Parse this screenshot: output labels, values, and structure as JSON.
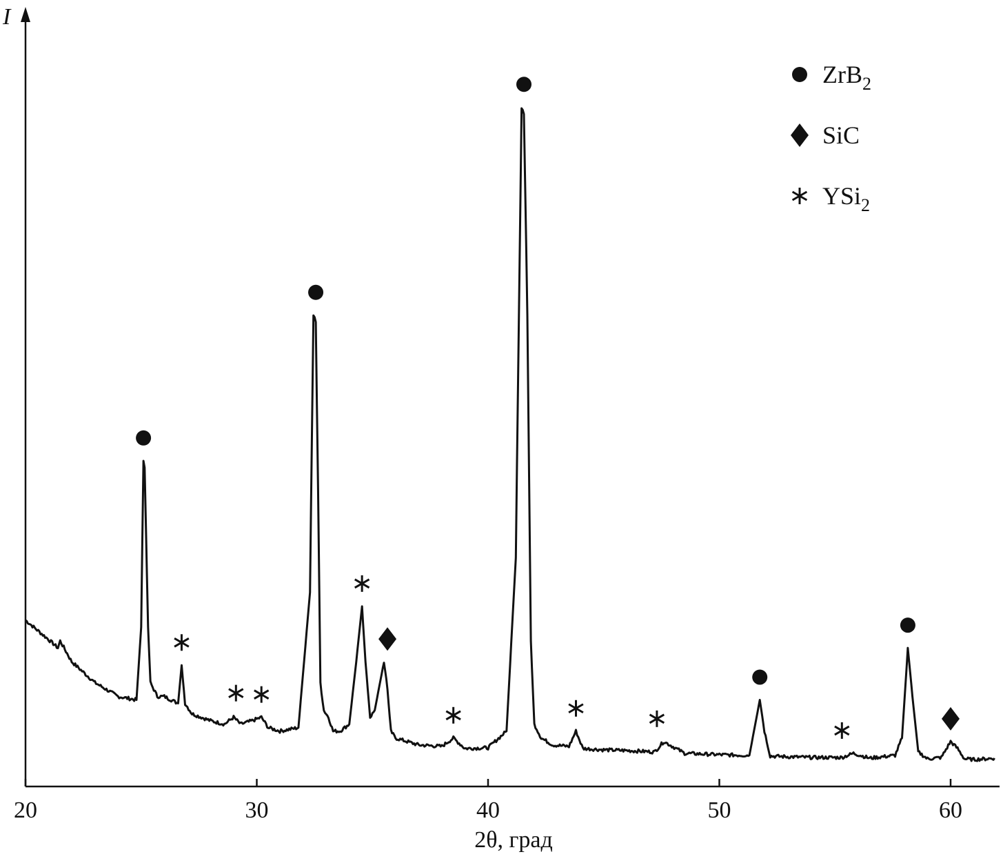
{
  "chart_data": {
    "type": "line",
    "title": "",
    "xlabel": "2θ, град",
    "ylabel": "I",
    "xlim": [
      20,
      62
    ],
    "ylim": [
      0,
      100
    ],
    "x_ticks": [
      "20",
      "30",
      "40",
      "50",
      "60"
    ],
    "grid": false,
    "legend_position": "top-right",
    "legend": [
      {
        "phase": "ZrB2",
        "base": "ZrB",
        "sub": "2",
        "marker": "circle"
      },
      {
        "phase": "SiC",
        "base": "SiC",
        "sub": "",
        "marker": "diamond"
      },
      {
        "phase": "YSi2",
        "base": "YSi",
        "sub": "2",
        "marker": "asterisk"
      }
    ],
    "series": [
      {
        "x": [
          20.0,
          21.0,
          21.4,
          21.5,
          22.0,
          23.0,
          24.0,
          24.8,
          25.0,
          25.1,
          25.15,
          25.3,
          25.4,
          25.7,
          26.0,
          26.6,
          26.75,
          26.9,
          27.2,
          28.0,
          28.6,
          29.0,
          29.3,
          29.8,
          30.2,
          30.5,
          31.0,
          31.8,
          32.3,
          32.45,
          32.55,
          32.65,
          32.75,
          32.9,
          33.1,
          33.3,
          33.6,
          34.0,
          34.3,
          34.55,
          34.7,
          34.9,
          35.1,
          35.5,
          35.65,
          35.8,
          36.0,
          36.5,
          37.0,
          38.0,
          38.5,
          39.0,
          40.0,
          40.8,
          41.2,
          41.45,
          41.55,
          41.7,
          41.85,
          42.0,
          42.3,
          42.8,
          43.5,
          43.8,
          44.1,
          45.0,
          46.0,
          47.2,
          47.6,
          48.5,
          50.0,
          51.3,
          51.75,
          51.95,
          52.2,
          53.0,
          54.0,
          55.3,
          55.8,
          56.5,
          57.6,
          57.9,
          58.15,
          58.35,
          58.6,
          59.0,
          59.6,
          60.0,
          60.3,
          60.6,
          61.0,
          61.5,
          61.9
        ],
        "y": [
          21.0,
          18.2,
          17.0,
          18.0,
          15.0,
          12.0,
          10.0,
          9.5,
          20.0,
          44.0,
          43.0,
          20.0,
          12.0,
          10.0,
          10.0,
          9.0,
          14.5,
          9.0,
          7.5,
          6.5,
          6.0,
          7.0,
          6.0,
          6.5,
          7.0,
          5.5,
          5.0,
          5.5,
          25.0,
          65.0,
          64.0,
          40.0,
          12.0,
          8.0,
          7.0,
          5.0,
          5.0,
          6.0,
          15.0,
          23.0,
          15.0,
          7.0,
          8.0,
          15.0,
          11.0,
          5.0,
          4.0,
          3.5,
          3.0,
          2.8,
          4.0,
          2.5,
          2.6,
          5.0,
          30.0,
          95.0,
          94.0,
          65.0,
          18.0,
          6.0,
          4.0,
          3.0,
          2.8,
          5.0,
          2.5,
          2.3,
          2.2,
          2.0,
          3.5,
          1.8,
          1.6,
          1.5,
          9.5,
          5.0,
          1.4,
          1.3,
          1.2,
          1.2,
          1.8,
          1.1,
          1.5,
          4.0,
          17.0,
          10.0,
          2.0,
          1.0,
          1.2,
          3.5,
          2.5,
          1.0,
          0.9,
          1.0,
          1.1
        ]
      }
    ],
    "peak_markers": [
      {
        "x": 25.1,
        "y": 44.0,
        "phase": "ZrB2"
      },
      {
        "x": 26.75,
        "y": 14.5,
        "phase": "YSi2"
      },
      {
        "x": 29.1,
        "y": 7.2,
        "phase": "YSi2"
      },
      {
        "x": 30.2,
        "y": 7.0,
        "phase": "YSi2"
      },
      {
        "x": 32.55,
        "y": 65.0,
        "phase": "ZrB2"
      },
      {
        "x": 34.55,
        "y": 23.0,
        "phase": "YSi2"
      },
      {
        "x": 35.65,
        "y": 15.0,
        "phase": "SiC"
      },
      {
        "x": 38.5,
        "y": 4.0,
        "phase": "YSi2"
      },
      {
        "x": 41.55,
        "y": 95.0,
        "phase": "ZrB2"
      },
      {
        "x": 43.8,
        "y": 5.0,
        "phase": "YSi2"
      },
      {
        "x": 47.3,
        "y": 3.5,
        "phase": "YSi2"
      },
      {
        "x": 51.75,
        "y": 9.5,
        "phase": "ZrB2"
      },
      {
        "x": 55.3,
        "y": 1.8,
        "phase": "YSi2"
      },
      {
        "x": 58.15,
        "y": 17.0,
        "phase": "ZrB2"
      },
      {
        "x": 60.0,
        "y": 3.5,
        "phase": "SiC"
      }
    ]
  }
}
